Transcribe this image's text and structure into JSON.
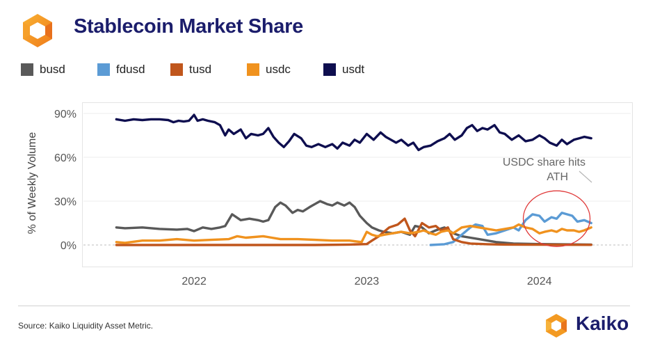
{
  "header": {
    "title": "Stablecoin Market Share",
    "logo_icon": "kaiko-hexagon-logo-icon"
  },
  "footer": {
    "source": "Source: Kaiko Liquidity Asset Metric.",
    "brand": "Kaiko",
    "brand_icon": "kaiko-hexagon-logo-icon"
  },
  "chart_data": {
    "type": "line",
    "title": "Stablecoin Market Share",
    "xlabel": "",
    "ylabel": "% of Weekly Volume",
    "x_range": [
      2021.5,
      2024.4
    ],
    "ylim": [
      -10,
      90
    ],
    "y_ticks": [
      {
        "value": 0,
        "label": "0%"
      },
      {
        "value": 30,
        "label": "30%"
      },
      {
        "value": 60,
        "label": "60%"
      },
      {
        "value": 90,
        "label": "90%"
      }
    ],
    "x_ticks": [
      {
        "value": 2022,
        "label": "2022"
      },
      {
        "value": 2023,
        "label": "2023"
      },
      {
        "value": 2024,
        "label": "2024"
      }
    ],
    "grid": {
      "horizontal": true,
      "vertical": false
    },
    "legend": {
      "placement": "top-left"
    },
    "annotation": {
      "text_line1": "USDC share hits",
      "text_line2": "ATH",
      "target_x": 2024.1,
      "target_y": 18
    },
    "series": [
      {
        "name": "busd",
        "color": "#595959",
        "points": [
          [
            2021.55,
            12
          ],
          [
            2021.6,
            11.5
          ],
          [
            2021.7,
            12
          ],
          [
            2021.8,
            11
          ],
          [
            2021.9,
            10.5
          ],
          [
            2021.96,
            11
          ],
          [
            2022.0,
            9.5
          ],
          [
            2022.05,
            12
          ],
          [
            2022.1,
            11
          ],
          [
            2022.15,
            12
          ],
          [
            2022.18,
            13
          ],
          [
            2022.22,
            21
          ],
          [
            2022.27,
            17
          ],
          [
            2022.32,
            18
          ],
          [
            2022.37,
            17
          ],
          [
            2022.4,
            16
          ],
          [
            2022.43,
            17
          ],
          [
            2022.47,
            26
          ],
          [
            2022.5,
            29
          ],
          [
            2022.53,
            27
          ],
          [
            2022.57,
            22
          ],
          [
            2022.6,
            24
          ],
          [
            2022.63,
            23
          ],
          [
            2022.67,
            26
          ],
          [
            2022.7,
            28
          ],
          [
            2022.73,
            30
          ],
          [
            2022.77,
            28
          ],
          [
            2022.8,
            27
          ],
          [
            2022.83,
            29
          ],
          [
            2022.87,
            27
          ],
          [
            2022.9,
            29
          ],
          [
            2022.93,
            26
          ],
          [
            2022.96,
            20
          ],
          [
            2023.0,
            15
          ],
          [
            2023.03,
            12
          ],
          [
            2023.07,
            10
          ],
          [
            2023.1,
            9
          ],
          [
            2023.15,
            8
          ],
          [
            2023.2,
            9
          ],
          [
            2023.25,
            7
          ],
          [
            2023.28,
            13
          ],
          [
            2023.32,
            12
          ],
          [
            2023.36,
            8
          ],
          [
            2023.4,
            10
          ],
          [
            2023.45,
            12
          ],
          [
            2023.5,
            8
          ],
          [
            2023.55,
            6
          ],
          [
            2023.6,
            5
          ],
          [
            2023.65,
            4
          ],
          [
            2023.7,
            3
          ],
          [
            2023.75,
            2
          ],
          [
            2023.85,
            1
          ],
          [
            2024.0,
            0.6
          ],
          [
            2024.2,
            0.4
          ],
          [
            2024.3,
            0.3
          ]
        ]
      },
      {
        "name": "fdusd",
        "color": "#5b9bd5",
        "points": [
          [
            2023.37,
            0
          ],
          [
            2023.45,
            0.5
          ],
          [
            2023.5,
            2
          ],
          [
            2023.55,
            7
          ],
          [
            2023.6,
            12
          ],
          [
            2023.63,
            14
          ],
          [
            2023.67,
            13
          ],
          [
            2023.7,
            7
          ],
          [
            2023.75,
            8
          ],
          [
            2023.8,
            10
          ],
          [
            2023.85,
            12
          ],
          [
            2023.88,
            10
          ],
          [
            2023.92,
            17
          ],
          [
            2023.96,
            21
          ],
          [
            2024.0,
            20
          ],
          [
            2024.03,
            16
          ],
          [
            2024.07,
            19
          ],
          [
            2024.1,
            18
          ],
          [
            2024.13,
            22
          ],
          [
            2024.16,
            21
          ],
          [
            2024.19,
            20
          ],
          [
            2024.22,
            16
          ],
          [
            2024.26,
            17
          ],
          [
            2024.3,
            15
          ]
        ]
      },
      {
        "name": "tusd",
        "color": "#c0561c",
        "points": [
          [
            2021.55,
            0
          ],
          [
            2021.8,
            0
          ],
          [
            2022.0,
            0
          ],
          [
            2022.2,
            0
          ],
          [
            2022.5,
            0
          ],
          [
            2022.7,
            0
          ],
          [
            2022.9,
            0.3
          ],
          [
            2023.0,
            0.6
          ],
          [
            2023.03,
            3
          ],
          [
            2023.07,
            6
          ],
          [
            2023.1,
            9
          ],
          [
            2023.13,
            12
          ],
          [
            2023.18,
            14
          ],
          [
            2023.22,
            18
          ],
          [
            2023.25,
            10
          ],
          [
            2023.28,
            6
          ],
          [
            2023.32,
            15
          ],
          [
            2023.36,
            12
          ],
          [
            2023.4,
            13
          ],
          [
            2023.43,
            10
          ],
          [
            2023.47,
            12
          ],
          [
            2023.5,
            4
          ],
          [
            2023.55,
            2
          ],
          [
            2023.6,
            1
          ],
          [
            2023.7,
            0.5
          ],
          [
            2023.8,
            0.3
          ],
          [
            2024.0,
            0.2
          ],
          [
            2024.3,
            0.1
          ]
        ]
      },
      {
        "name": "usdc",
        "color": "#f0921e",
        "points": [
          [
            2021.55,
            2
          ],
          [
            2021.6,
            1.5
          ],
          [
            2021.7,
            3
          ],
          [
            2021.8,
            3
          ],
          [
            2021.9,
            4
          ],
          [
            2022.0,
            3
          ],
          [
            2022.1,
            3.5
          ],
          [
            2022.2,
            4
          ],
          [
            2022.25,
            6
          ],
          [
            2022.3,
            5
          ],
          [
            2022.4,
            6
          ],
          [
            2022.45,
            5
          ],
          [
            2022.5,
            4
          ],
          [
            2022.6,
            4
          ],
          [
            2022.7,
            3.5
          ],
          [
            2022.8,
            3
          ],
          [
            2022.9,
            3
          ],
          [
            2022.97,
            2
          ],
          [
            2023.0,
            9
          ],
          [
            2023.03,
            7
          ],
          [
            2023.06,
            6
          ],
          [
            2023.1,
            7
          ],
          [
            2023.15,
            8
          ],
          [
            2023.2,
            9
          ],
          [
            2023.25,
            8
          ],
          [
            2023.3,
            9
          ],
          [
            2023.33,
            10
          ],
          [
            2023.37,
            8
          ],
          [
            2023.4,
            7
          ],
          [
            2023.43,
            9
          ],
          [
            2023.47,
            10
          ],
          [
            2023.5,
            8
          ],
          [
            2023.55,
            12
          ],
          [
            2023.6,
            13
          ],
          [
            2023.65,
            12
          ],
          [
            2023.7,
            11
          ],
          [
            2023.75,
            10
          ],
          [
            2023.8,
            11
          ],
          [
            2023.85,
            12
          ],
          [
            2023.88,
            14
          ],
          [
            2023.92,
            12
          ],
          [
            2023.96,
            11
          ],
          [
            2024.0,
            8
          ],
          [
            2024.03,
            9
          ],
          [
            2024.07,
            10
          ],
          [
            2024.1,
            9
          ],
          [
            2024.13,
            11
          ],
          [
            2024.16,
            10
          ],
          [
            2024.2,
            10
          ],
          [
            2024.23,
            9
          ],
          [
            2024.26,
            10
          ],
          [
            2024.3,
            12
          ]
        ]
      },
      {
        "name": "usdt",
        "color": "#0e0e4f",
        "points": [
          [
            2021.55,
            86
          ],
          [
            2021.6,
            85
          ],
          [
            2021.65,
            86
          ],
          [
            2021.7,
            85.5
          ],
          [
            2021.75,
            86
          ],
          [
            2021.8,
            86
          ],
          [
            2021.85,
            85.5
          ],
          [
            2021.88,
            84
          ],
          [
            2021.91,
            85
          ],
          [
            2021.94,
            84.5
          ],
          [
            2021.97,
            85
          ],
          [
            2022.0,
            89
          ],
          [
            2022.02,
            85
          ],
          [
            2022.05,
            86
          ],
          [
            2022.08,
            85
          ],
          [
            2022.12,
            84
          ],
          [
            2022.15,
            82
          ],
          [
            2022.18,
            75
          ],
          [
            2022.2,
            79
          ],
          [
            2022.23,
            76
          ],
          [
            2022.27,
            79
          ],
          [
            2022.3,
            73
          ],
          [
            2022.33,
            76
          ],
          [
            2022.37,
            75
          ],
          [
            2022.4,
            76
          ],
          [
            2022.43,
            80
          ],
          [
            2022.46,
            74
          ],
          [
            2022.49,
            70
          ],
          [
            2022.52,
            67
          ],
          [
            2022.55,
            71
          ],
          [
            2022.58,
            76
          ],
          [
            2022.62,
            73
          ],
          [
            2022.65,
            68
          ],
          [
            2022.68,
            67
          ],
          [
            2022.72,
            69
          ],
          [
            2022.76,
            67
          ],
          [
            2022.8,
            69
          ],
          [
            2022.83,
            66
          ],
          [
            2022.86,
            70
          ],
          [
            2022.9,
            68
          ],
          [
            2022.93,
            72
          ],
          [
            2022.96,
            70
          ],
          [
            2023.0,
            76
          ],
          [
            2023.04,
            72
          ],
          [
            2023.08,
            77
          ],
          [
            2023.11,
            74
          ],
          [
            2023.14,
            72
          ],
          [
            2023.17,
            70
          ],
          [
            2023.2,
            72
          ],
          [
            2023.24,
            68
          ],
          [
            2023.27,
            70
          ],
          [
            2023.3,
            65
          ],
          [
            2023.33,
            67
          ],
          [
            2023.37,
            68
          ],
          [
            2023.41,
            71
          ],
          [
            2023.45,
            73
          ],
          [
            2023.48,
            76
          ],
          [
            2023.51,
            72
          ],
          [
            2023.55,
            75
          ],
          [
            2023.58,
            80
          ],
          [
            2023.61,
            82
          ],
          [
            2023.64,
            78
          ],
          [
            2023.67,
            80
          ],
          [
            2023.7,
            79
          ],
          [
            2023.74,
            82
          ],
          [
            2023.77,
            77
          ],
          [
            2023.8,
            76
          ],
          [
            2023.84,
            72
          ],
          [
            2023.88,
            75
          ],
          [
            2023.92,
            71
          ],
          [
            2023.96,
            72
          ],
          [
            2024.0,
            75
          ],
          [
            2024.03,
            73
          ],
          [
            2024.06,
            70
          ],
          [
            2024.1,
            68
          ],
          [
            2024.13,
            72
          ],
          [
            2024.16,
            69
          ],
          [
            2024.2,
            72
          ],
          [
            2024.23,
            73
          ],
          [
            2024.26,
            74
          ],
          [
            2024.3,
            73
          ]
        ]
      }
    ]
  }
}
